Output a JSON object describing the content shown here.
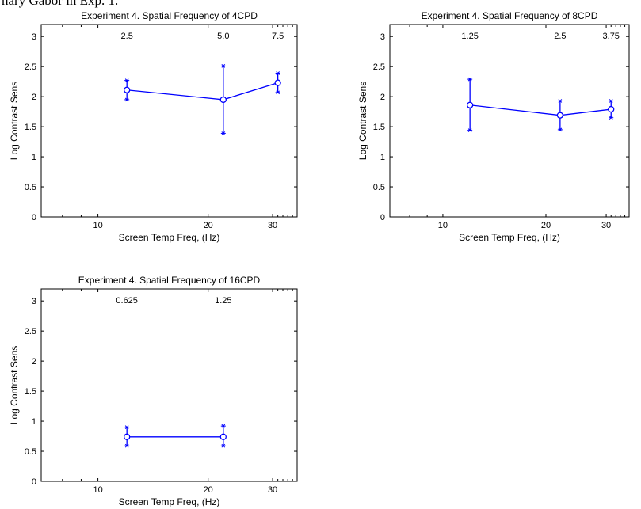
{
  "header_text": "nary Gabor in Exp. 1.",
  "chart_data": [
    {
      "type": "line",
      "title": "Experiment 4. Spatial Frequency of 4CPD",
      "xlabel": "Screen Temp Freq, (Hz)",
      "ylabel": "Log Contrast Sens",
      "xscale": "log",
      "xlim": [
        7,
        35
      ],
      "ylim": [
        0,
        3.2
      ],
      "xticks": [
        10,
        20,
        30
      ],
      "yticks": [
        0,
        0.5,
        1,
        1.5,
        2,
        2.5,
        3
      ],
      "top_labels": [
        {
          "x": 12,
          "text": "2.5"
        },
        {
          "x": 22,
          "text": "5.0"
        },
        {
          "x": 31,
          "text": "7.5"
        }
      ],
      "series": [
        {
          "x": [
            12,
            22,
            31
          ],
          "y": [
            2.11,
            1.95,
            2.23
          ],
          "err_low": [
            1.95,
            1.39,
            2.07
          ],
          "err_high": [
            2.27,
            2.51,
            2.39
          ]
        }
      ],
      "grid": false,
      "color": "#0000ff"
    },
    {
      "type": "line",
      "title": "Experiment 4. Spatial Frequency of 8CPD",
      "xlabel": "Screen Temp Freq, (Hz)",
      "ylabel": "Log Contrast Sens",
      "xscale": "log",
      "xlim": [
        7,
        35
      ],
      "ylim": [
        0,
        3.2
      ],
      "xticks": [
        10,
        20,
        30
      ],
      "yticks": [
        0,
        0.5,
        1,
        1.5,
        2,
        2.5,
        3
      ],
      "top_labels": [
        {
          "x": 12,
          "text": "1.25"
        },
        {
          "x": 22,
          "text": "2.5"
        },
        {
          "x": 31,
          "text": "3.75"
        }
      ],
      "series": [
        {
          "x": [
            12,
            22,
            31
          ],
          "y": [
            1.86,
            1.69,
            1.79
          ],
          "err_low": [
            1.44,
            1.45,
            1.65
          ],
          "err_high": [
            2.29,
            1.93,
            1.93
          ]
        }
      ],
      "grid": false,
      "color": "#0000ff"
    },
    {
      "type": "line",
      "title": "Experiment 4. Spatial Frequency of 16CPD",
      "xlabel": "Screen Temp Freq, (Hz)",
      "ylabel": "Log Contrast Sens",
      "xscale": "log",
      "xlim": [
        7,
        35
      ],
      "ylim": [
        0,
        3.2
      ],
      "xticks": [
        10,
        20,
        30
      ],
      "yticks": [
        0,
        0.5,
        1,
        1.5,
        2,
        2.5,
        3
      ],
      "top_labels": [
        {
          "x": 12,
          "text": "0.625"
        },
        {
          "x": 22,
          "text": "1.25"
        }
      ],
      "series": [
        {
          "x": [
            12,
            22
          ],
          "y": [
            0.74,
            0.74
          ],
          "err_low": [
            0.59,
            0.59
          ],
          "err_high": [
            0.9,
            0.92
          ]
        }
      ],
      "grid": false,
      "color": "#0000ff"
    }
  ]
}
